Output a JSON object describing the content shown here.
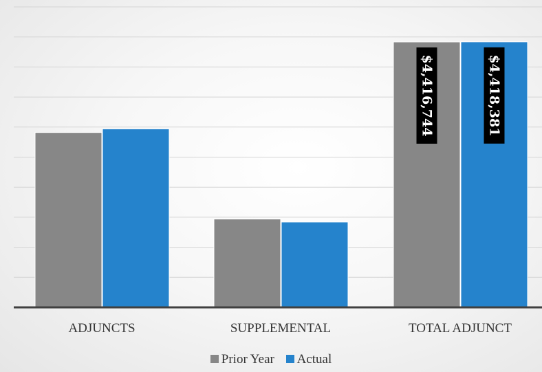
{
  "chart_data": {
    "type": "bar",
    "categories": [
      "ADJUNCTS",
      "SUPPLEMENTAL",
      "TOTAL ADJUNCT"
    ],
    "series": [
      {
        "name": "Prior Year",
        "color": "#878787",
        "values": [
          2910000,
          1470000,
          4416744
        ],
        "labels": [
          "",
          "",
          "$4,416,744"
        ]
      },
      {
        "name": "Actual",
        "color": "#2583cc",
        "values": [
          2970000,
          1420000,
          4418381
        ],
        "labels": [
          "",
          "",
          "$4,418,381"
        ]
      }
    ],
    "ylim": [
      0,
      5000000
    ],
    "grid": true,
    "legend_position": "bottom"
  }
}
